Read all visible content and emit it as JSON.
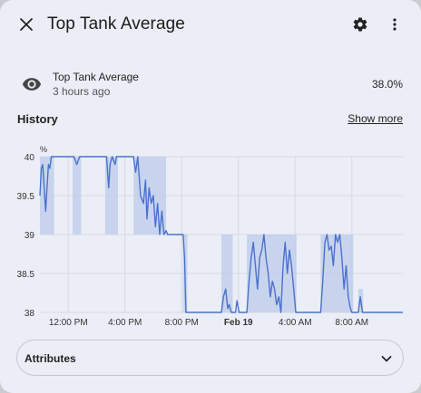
{
  "dialog": {
    "title": "Top Tank Average",
    "icons": {
      "close": "close-icon",
      "settings": "gear-icon",
      "more": "more-vertical-icon"
    }
  },
  "entity": {
    "name": "Top Tank Average",
    "last_changed": "3 hours ago",
    "state": "38.0%",
    "icon": "eye-icon"
  },
  "history": {
    "title": "History",
    "show_more_label": "Show more"
  },
  "attributes": {
    "label": "Attributes",
    "icon": "chevron-down-icon"
  },
  "colors": {
    "line": "#4a72cc",
    "band": "#bccbe9",
    "grid": "#d6d9e2",
    "background": "#eceef7"
  },
  "chart_data": {
    "type": "line",
    "unit_label": "%",
    "y_ticks": [
      "40",
      "39.5",
      "39",
      "38.5",
      "38"
    ],
    "ylim": [
      38,
      40
    ],
    "x_ticks": [
      {
        "label": "12:00 PM",
        "hour": 2
      },
      {
        "label": "4:00 PM",
        "hour": 6
      },
      {
        "label": "8:00 PM",
        "hour": 10
      },
      {
        "label": "Feb 19",
        "hour": 14,
        "bold": true
      },
      {
        "label": "4:00 AM",
        "hour": 18
      },
      {
        "label": "8:00 AM",
        "hour": 22
      }
    ],
    "xlim": [
      0,
      25.6
    ],
    "grid": true,
    "series": [
      {
        "values": [
          [
            0.0,
            39.5
          ],
          [
            0.1,
            39.85
          ],
          [
            0.2,
            39.9
          ],
          [
            0.3,
            39.6
          ],
          [
            0.4,
            39.3
          ],
          [
            0.5,
            39.6
          ],
          [
            0.6,
            39.9
          ],
          [
            0.7,
            39.85
          ],
          [
            0.8,
            40.0
          ],
          [
            2.4,
            40.0
          ],
          [
            2.6,
            39.9
          ],
          [
            2.8,
            40.0
          ],
          [
            4.7,
            40.0
          ],
          [
            4.85,
            39.6
          ],
          [
            4.95,
            39.9
          ],
          [
            5.1,
            40.0
          ],
          [
            5.3,
            39.9
          ],
          [
            5.4,
            40.0
          ],
          [
            6.6,
            40.0
          ],
          [
            6.75,
            39.8
          ],
          [
            6.9,
            40.0
          ],
          [
            7.1,
            39.5
          ],
          [
            7.3,
            39.4
          ],
          [
            7.45,
            39.7
          ],
          [
            7.55,
            39.2
          ],
          [
            7.7,
            39.6
          ],
          [
            7.85,
            39.4
          ],
          [
            8.0,
            39.5
          ],
          [
            8.15,
            39.1
          ],
          [
            8.3,
            39.4
          ],
          [
            8.45,
            39.0
          ],
          [
            8.6,
            39.3
          ],
          [
            8.75,
            39.0
          ],
          [
            8.9,
            39.05
          ],
          [
            9.0,
            39.0
          ],
          [
            10.1,
            39.0
          ],
          [
            10.2,
            38.7
          ],
          [
            10.3,
            38.0
          ],
          [
            12.8,
            38.0
          ],
          [
            12.95,
            38.2
          ],
          [
            13.1,
            38.3
          ],
          [
            13.25,
            38.05
          ],
          [
            13.35,
            38.1
          ],
          [
            13.5,
            38.0
          ],
          [
            13.8,
            38.0
          ],
          [
            13.9,
            38.15
          ],
          [
            14.05,
            38.0
          ],
          [
            14.6,
            38.0
          ],
          [
            14.75,
            38.4
          ],
          [
            14.9,
            38.7
          ],
          [
            15.05,
            38.9
          ],
          [
            15.2,
            38.6
          ],
          [
            15.35,
            38.3
          ],
          [
            15.5,
            38.7
          ],
          [
            15.65,
            38.8
          ],
          [
            15.8,
            39.0
          ],
          [
            15.95,
            38.7
          ],
          [
            16.1,
            38.5
          ],
          [
            16.25,
            38.2
          ],
          [
            16.4,
            38.4
          ],
          [
            16.55,
            38.3
          ],
          [
            16.7,
            38.1
          ],
          [
            16.85,
            38.2
          ],
          [
            17.0,
            38.0
          ],
          [
            17.15,
            38.6
          ],
          [
            17.3,
            38.9
          ],
          [
            17.45,
            38.5
          ],
          [
            17.6,
            38.8
          ],
          [
            17.75,
            38.6
          ],
          [
            17.9,
            38.3
          ],
          [
            18.05,
            38.0
          ],
          [
            19.8,
            38.0
          ],
          [
            19.95,
            38.4
          ],
          [
            20.1,
            38.9
          ],
          [
            20.25,
            39.0
          ],
          [
            20.4,
            38.8
          ],
          [
            20.55,
            38.85
          ],
          [
            20.7,
            38.6
          ],
          [
            20.85,
            39.0
          ],
          [
            21.0,
            38.9
          ],
          [
            21.15,
            39.0
          ],
          [
            21.3,
            38.7
          ],
          [
            21.45,
            38.3
          ],
          [
            21.6,
            38.6
          ],
          [
            21.75,
            38.2
          ],
          [
            21.9,
            38.05
          ],
          [
            22.0,
            38.0
          ],
          [
            22.45,
            38.0
          ],
          [
            22.6,
            38.2
          ],
          [
            22.75,
            38.0
          ],
          [
            25.6,
            38.0
          ]
        ],
        "bands": [
          [
            0.0,
            1.0,
            39.0,
            40.0
          ],
          [
            2.3,
            2.9,
            39.0,
            40.0
          ],
          [
            4.6,
            5.5,
            39.0,
            40.0
          ],
          [
            6.6,
            8.9,
            39.0,
            40.0
          ],
          [
            10.1,
            10.4,
            38.0,
            39.0
          ],
          [
            12.8,
            13.6,
            38.0,
            39.0
          ],
          [
            14.6,
            18.1,
            38.0,
            39.0
          ],
          [
            19.8,
            22.1,
            38.0,
            39.0
          ],
          [
            22.45,
            22.8,
            38.0,
            38.3
          ]
        ]
      }
    ]
  }
}
